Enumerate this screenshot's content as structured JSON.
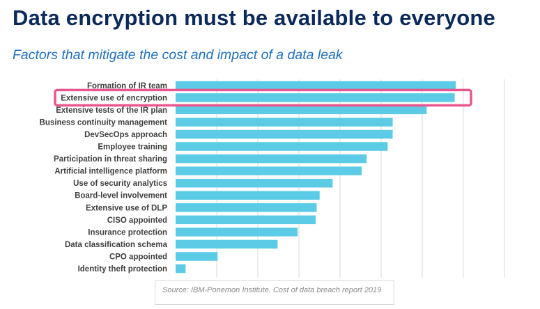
{
  "title": "Data encryption must be available to everyone",
  "subtitle": "Factors that mitigate the cost and impact of a data leak",
  "source": "Source: IBM-Ponemon Institute. Cost of data breach report 2019",
  "highlight": {
    "category": "Extensive use of encryption",
    "color": "#e8558f"
  },
  "chart_data": {
    "type": "bar",
    "orientation": "horizontal",
    "title": "",
    "xlabel": "",
    "ylabel": "",
    "grid": true,
    "bar_color": "#5bcbe6",
    "xlim": [
      0,
      14
    ],
    "categories": [
      "Formation of IR team",
      "Extensive use of encryption",
      "Extensive tests of the IR plan",
      "Business continuity management",
      "DevSecOps approach",
      "Employee training",
      "Participation in threat sharing",
      "Artificial intelligence platform",
      "Use of security analytics",
      "Board-level involvement",
      "Extensive use of DLP",
      "CISO appointed",
      "Insurance protection",
      "Data classification schema",
      "CPO appointed",
      "Identity theft protection"
    ],
    "values": [
      14.0,
      13.95,
      12.55,
      10.85,
      10.85,
      10.6,
      9.55,
      9.3,
      7.85,
      7.2,
      7.05,
      7.0,
      6.1,
      5.1,
      2.1,
      0.5
    ]
  }
}
